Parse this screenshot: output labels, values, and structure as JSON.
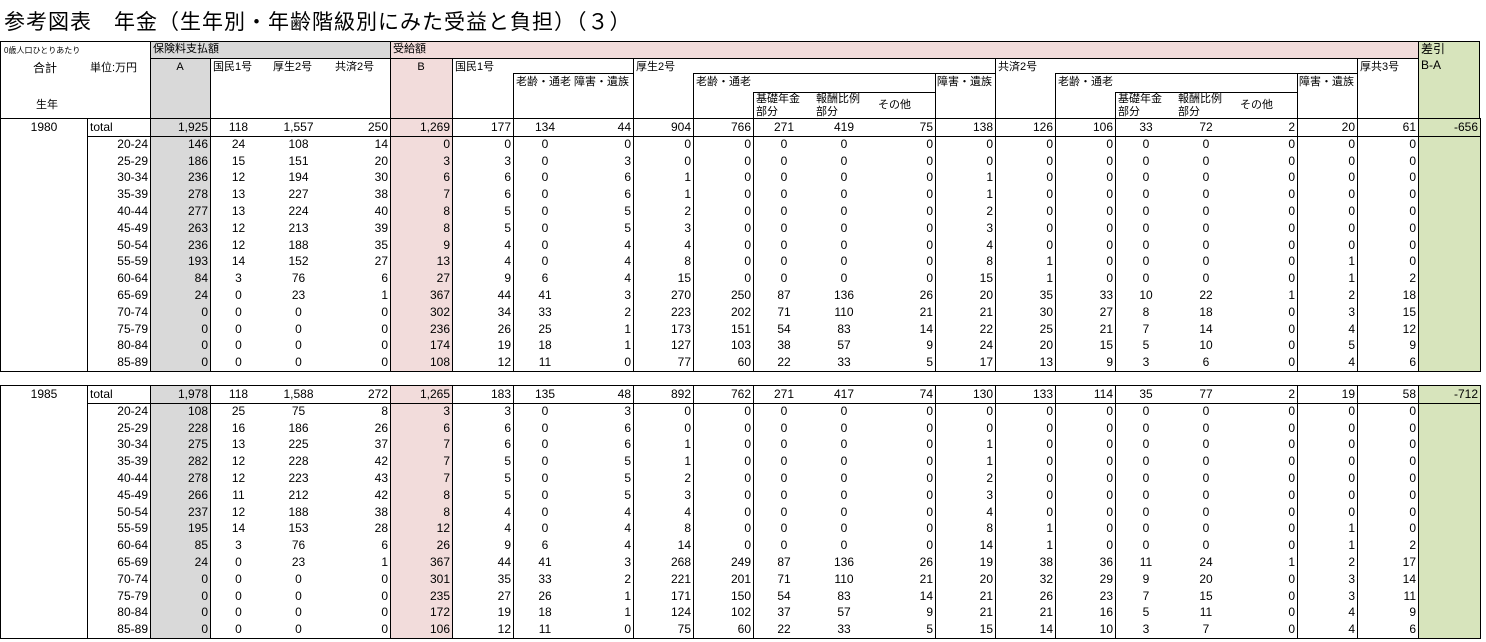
{
  "title": "参考図表　年金（生年別・年齢階級別にみた受益と負担）（３）",
  "colors": {
    "premium": "#d9d9d9",
    "benefit": "#f2dcdb",
    "difference": "#d7e4bc"
  },
  "header": {
    "per_capita_note": "0歳人口ひとりあたり",
    "total": "合計",
    "unit": "単位:万円",
    "birth_year": "生年",
    "premium_section": "保険料支払額",
    "premium_total": "A",
    "premium_cols": [
      "国民1号",
      "厚生2号",
      "共済2号"
    ],
    "benefit_section": "受給額",
    "benefit_total": "B",
    "kokumin": "国民1号",
    "kokumin_sub": "老齢・通老 障害・遺族",
    "kosei": "厚生2号",
    "rorei": "老齢・通老",
    "kiso": "基礎年金部分",
    "hoshu": "報酬比例部分",
    "sonota": "その他",
    "shogai": "障害・遺族",
    "kyosai": "共済2号",
    "kokyo3": "厚共3号",
    "diff_section": "差引",
    "diff_label": "B-A"
  },
  "blocks": [
    {
      "year": "1980",
      "total_label": "total",
      "total": [
        "1,925",
        "118",
        "1,557",
        "250",
        "1,269",
        "177",
        "134",
        "44",
        "904",
        "766",
        "271",
        "419",
        "75",
        "138",
        "126",
        "106",
        "33",
        "72",
        "2",
        "20",
        "61",
        "-656"
      ],
      "rows": [
        {
          "age": "20-24",
          "values": [
            "146",
            "24",
            "108",
            "14",
            "0",
            "0",
            "0",
            "0",
            "0",
            "0",
            "0",
            "0",
            "0",
            "0",
            "0",
            "0",
            "0",
            "0",
            "0",
            "0",
            "0"
          ]
        },
        {
          "age": "25-29",
          "values": [
            "186",
            "15",
            "151",
            "20",
            "3",
            "3",
            "0",
            "3",
            "0",
            "0",
            "0",
            "0",
            "0",
            "0",
            "0",
            "0",
            "0",
            "0",
            "0",
            "0",
            "0"
          ]
        },
        {
          "age": "30-34",
          "values": [
            "236",
            "12",
            "194",
            "30",
            "6",
            "6",
            "0",
            "6",
            "1",
            "0",
            "0",
            "0",
            "0",
            "1",
            "0",
            "0",
            "0",
            "0",
            "0",
            "0",
            "0"
          ]
        },
        {
          "age": "35-39",
          "values": [
            "278",
            "13",
            "227",
            "38",
            "7",
            "6",
            "0",
            "6",
            "1",
            "0",
            "0",
            "0",
            "0",
            "1",
            "0",
            "0",
            "0",
            "0",
            "0",
            "0",
            "0"
          ]
        },
        {
          "age": "40-44",
          "values": [
            "277",
            "13",
            "224",
            "40",
            "8",
            "5",
            "0",
            "5",
            "2",
            "0",
            "0",
            "0",
            "0",
            "2",
            "0",
            "0",
            "0",
            "0",
            "0",
            "0",
            "0"
          ]
        },
        {
          "age": "45-49",
          "values": [
            "263",
            "12",
            "213",
            "39",
            "8",
            "5",
            "0",
            "5",
            "3",
            "0",
            "0",
            "0",
            "0",
            "3",
            "0",
            "0",
            "0",
            "0",
            "0",
            "0",
            "0"
          ]
        },
        {
          "age": "50-54",
          "values": [
            "236",
            "12",
            "188",
            "35",
            "9",
            "4",
            "0",
            "4",
            "4",
            "0",
            "0",
            "0",
            "0",
            "4",
            "0",
            "0",
            "0",
            "0",
            "0",
            "0",
            "0"
          ]
        },
        {
          "age": "55-59",
          "values": [
            "193",
            "14",
            "152",
            "27",
            "13",
            "4",
            "0",
            "4",
            "8",
            "0",
            "0",
            "0",
            "0",
            "8",
            "1",
            "0",
            "0",
            "0",
            "0",
            "1",
            "0"
          ]
        },
        {
          "age": "60-64",
          "values": [
            "84",
            "3",
            "76",
            "6",
            "27",
            "9",
            "6",
            "4",
            "15",
            "0",
            "0",
            "0",
            "0",
            "15",
            "1",
            "0",
            "0",
            "0",
            "0",
            "1",
            "2"
          ]
        },
        {
          "age": "65-69",
          "values": [
            "24",
            "0",
            "23",
            "1",
            "367",
            "44",
            "41",
            "3",
            "270",
            "250",
            "87",
            "136",
            "26",
            "20",
            "35",
            "33",
            "10",
            "22",
            "1",
            "2",
            "18"
          ]
        },
        {
          "age": "70-74",
          "values": [
            "0",
            "0",
            "0",
            "0",
            "302",
            "34",
            "33",
            "2",
            "223",
            "202",
            "71",
            "110",
            "21",
            "21",
            "30",
            "27",
            "8",
            "18",
            "0",
            "3",
            "15"
          ]
        },
        {
          "age": "75-79",
          "values": [
            "0",
            "0",
            "0",
            "0",
            "236",
            "26",
            "25",
            "1",
            "173",
            "151",
            "54",
            "83",
            "14",
            "22",
            "25",
            "21",
            "7",
            "14",
            "0",
            "4",
            "12"
          ]
        },
        {
          "age": "80-84",
          "values": [
            "0",
            "0",
            "0",
            "0",
            "174",
            "19",
            "18",
            "1",
            "127",
            "103",
            "38",
            "57",
            "9",
            "24",
            "20",
            "15",
            "5",
            "10",
            "0",
            "5",
            "9"
          ]
        },
        {
          "age": "85-89",
          "values": [
            "0",
            "0",
            "0",
            "0",
            "108",
            "12",
            "11",
            "0",
            "77",
            "60",
            "22",
            "33",
            "5",
            "17",
            "13",
            "9",
            "3",
            "6",
            "0",
            "4",
            "6"
          ]
        }
      ]
    },
    {
      "year": "1985",
      "total_label": "total",
      "total": [
        "1,978",
        "118",
        "1,588",
        "272",
        "1,265",
        "183",
        "135",
        "48",
        "892",
        "762",
        "271",
        "417",
        "74",
        "130",
        "133",
        "114",
        "35",
        "77",
        "2",
        "19",
        "58",
        "-712"
      ],
      "rows": [
        {
          "age": "20-24",
          "values": [
            "108",
            "25",
            "75",
            "8",
            "3",
            "3",
            "0",
            "3",
            "0",
            "0",
            "0",
            "0",
            "0",
            "0",
            "0",
            "0",
            "0",
            "0",
            "0",
            "0",
            "0"
          ]
        },
        {
          "age": "25-29",
          "values": [
            "228",
            "16",
            "186",
            "26",
            "6",
            "6",
            "0",
            "6",
            "0",
            "0",
            "0",
            "0",
            "0",
            "0",
            "0",
            "0",
            "0",
            "0",
            "0",
            "0",
            "0"
          ]
        },
        {
          "age": "30-34",
          "values": [
            "275",
            "13",
            "225",
            "37",
            "7",
            "6",
            "0",
            "6",
            "1",
            "0",
            "0",
            "0",
            "0",
            "1",
            "0",
            "0",
            "0",
            "0",
            "0",
            "0",
            "0"
          ]
        },
        {
          "age": "35-39",
          "values": [
            "282",
            "12",
            "228",
            "42",
            "7",
            "5",
            "0",
            "5",
            "1",
            "0",
            "0",
            "0",
            "0",
            "1",
            "0",
            "0",
            "0",
            "0",
            "0",
            "0",
            "0"
          ]
        },
        {
          "age": "40-44",
          "values": [
            "278",
            "12",
            "223",
            "43",
            "7",
            "5",
            "0",
            "5",
            "2",
            "0",
            "0",
            "0",
            "0",
            "2",
            "0",
            "0",
            "0",
            "0",
            "0",
            "0",
            "0"
          ]
        },
        {
          "age": "45-49",
          "values": [
            "266",
            "11",
            "212",
            "42",
            "8",
            "5",
            "0",
            "5",
            "3",
            "0",
            "0",
            "0",
            "0",
            "3",
            "0",
            "0",
            "0",
            "0",
            "0",
            "0",
            "0"
          ]
        },
        {
          "age": "50-54",
          "values": [
            "237",
            "12",
            "188",
            "38",
            "8",
            "4",
            "0",
            "4",
            "4",
            "0",
            "0",
            "0",
            "0",
            "4",
            "0",
            "0",
            "0",
            "0",
            "0",
            "0",
            "0"
          ]
        },
        {
          "age": "55-59",
          "values": [
            "195",
            "14",
            "153",
            "28",
            "12",
            "4",
            "0",
            "4",
            "8",
            "0",
            "0",
            "0",
            "0",
            "8",
            "1",
            "0",
            "0",
            "0",
            "0",
            "1",
            "0"
          ]
        },
        {
          "age": "60-64",
          "values": [
            "85",
            "3",
            "76",
            "6",
            "26",
            "9",
            "6",
            "4",
            "14",
            "0",
            "0",
            "0",
            "0",
            "14",
            "1",
            "0",
            "0",
            "0",
            "0",
            "1",
            "2"
          ]
        },
        {
          "age": "65-69",
          "values": [
            "24",
            "0",
            "23",
            "1",
            "367",
            "44",
            "41",
            "3",
            "268",
            "249",
            "87",
            "136",
            "26",
            "19",
            "38",
            "36",
            "11",
            "24",
            "1",
            "2",
            "17"
          ]
        },
        {
          "age": "70-74",
          "values": [
            "0",
            "0",
            "0",
            "0",
            "301",
            "35",
            "33",
            "2",
            "221",
            "201",
            "71",
            "110",
            "21",
            "20",
            "32",
            "29",
            "9",
            "20",
            "0",
            "3",
            "14"
          ]
        },
        {
          "age": "75-79",
          "values": [
            "0",
            "0",
            "0",
            "0",
            "235",
            "27",
            "26",
            "1",
            "171",
            "150",
            "54",
            "83",
            "14",
            "21",
            "26",
            "23",
            "7",
            "15",
            "0",
            "3",
            "11"
          ]
        },
        {
          "age": "80-84",
          "values": [
            "0",
            "0",
            "0",
            "0",
            "172",
            "19",
            "18",
            "1",
            "124",
            "102",
            "37",
            "57",
            "9",
            "21",
            "21",
            "16",
            "5",
            "11",
            "0",
            "4",
            "9"
          ]
        },
        {
          "age": "85-89",
          "values": [
            "0",
            "0",
            "0",
            "0",
            "106",
            "12",
            "11",
            "0",
            "75",
            "60",
            "22",
            "33",
            "5",
            "15",
            "14",
            "10",
            "3",
            "7",
            "0",
            "4",
            "6"
          ]
        }
      ]
    }
  ]
}
